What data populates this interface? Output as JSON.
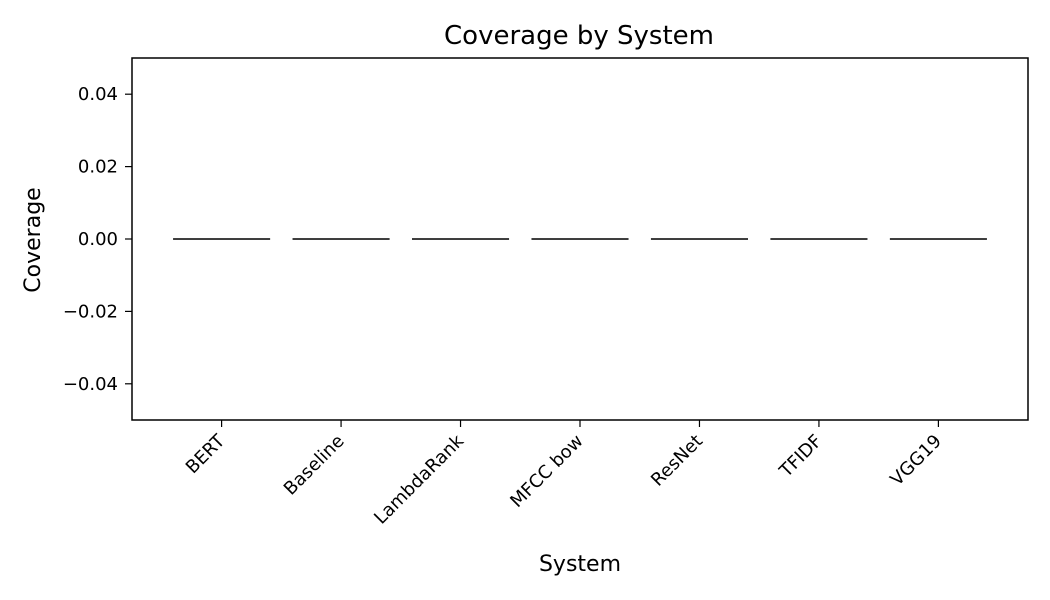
{
  "chart_data": {
    "type": "bar",
    "title": "Coverage by System",
    "xlabel": "System",
    "ylabel": "Coverage",
    "categories": [
      "BERT",
      "Baseline",
      "LambdaRank",
      "MFCC bow",
      "ResNet",
      "TFIDF",
      "VGG19"
    ],
    "values": [
      0,
      0,
      0,
      0,
      0,
      0,
      0
    ],
    "ylim": [
      -0.05,
      0.05
    ],
    "yticks": [
      -0.04,
      -0.02,
      0.0,
      0.02,
      0.04
    ],
    "ytick_labels": [
      "−0.04",
      "−0.02",
      "0.00",
      "0.02",
      "0.04"
    ],
    "grid": false,
    "bar_edge_color": "#000000",
    "bar_fill_color": "#1f77b4"
  }
}
